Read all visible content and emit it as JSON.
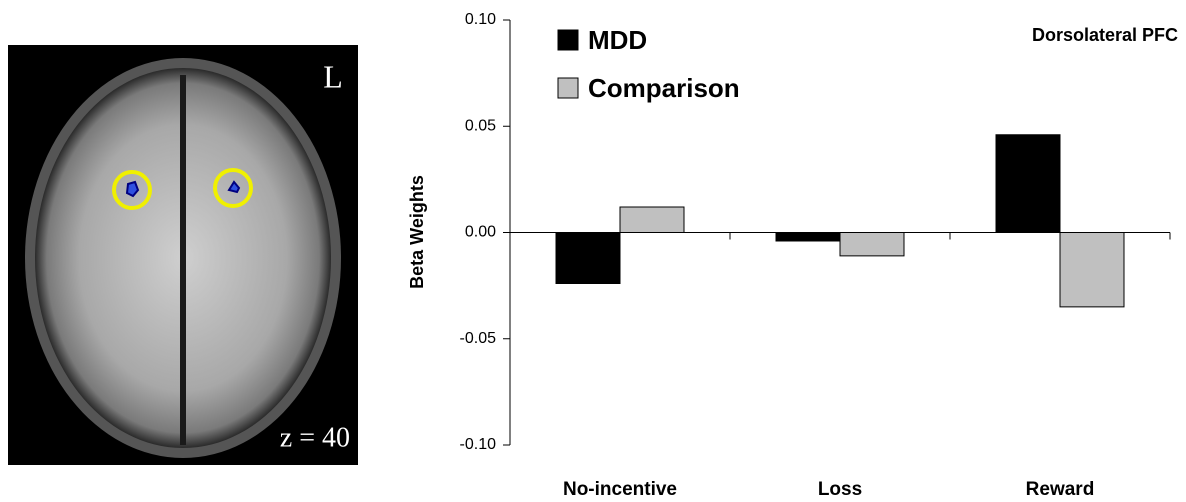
{
  "image": {
    "side_label": "L",
    "slice_label": "z = 40"
  },
  "chart_data": {
    "type": "bar",
    "title": "Dorsolateral PFC",
    "y_label": "Beta Weights",
    "categories": [
      "No-incentive",
      "Loss",
      "Reward"
    ],
    "series": [
      {
        "name": "MDD",
        "color": "#000000",
        "values": [
          -0.024,
          -0.004,
          0.046
        ]
      },
      {
        "name": "Comparison",
        "color": "#c0c0c0",
        "values": [
          0.012,
          -0.011,
          -0.035
        ]
      }
    ],
    "ylim": [
      -0.1,
      0.1
    ],
    "yticks": [
      {
        "value": -0.1,
        "label": "-0.10"
      },
      -0.05,
      {
        "value": 0,
        "label": "0.00"
      },
      0.05,
      {
        "value": 0.1,
        "label": "0.10"
      }
    ],
    "grid": false
  }
}
